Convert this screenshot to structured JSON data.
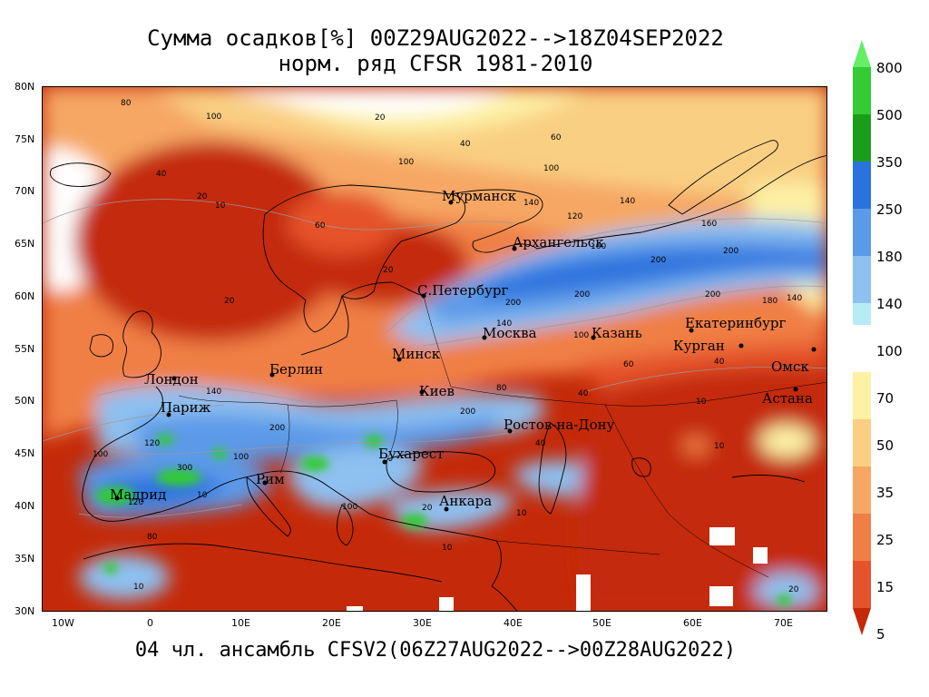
{
  "title": {
    "line1": "Сумма осадков[%] 00Z29AUG2022-->18Z04SEP2022",
    "line2": "норм. ряд CFSR 1981-2010"
  },
  "footer": "04 чл. ансамбль CFSV2(06Z27AUG2022-->00Z28AUG2022)",
  "axes": {
    "lat_labels": [
      "80N",
      "75N",
      "70N",
      "65N",
      "60N",
      "55N",
      "50N",
      "45N",
      "40N",
      "35N",
      "30N"
    ],
    "lon_labels": [
      "10W",
      "0",
      "10E",
      "20E",
      "30E",
      "40E",
      "50E",
      "60E",
      "70E"
    ]
  },
  "cities": [
    {
      "name": "Мурманск"
    },
    {
      "name": "Архангельск"
    },
    {
      "name": "С.Петербург"
    },
    {
      "name": "Москва"
    },
    {
      "name": "Казань"
    },
    {
      "name": "Екатеринбург"
    },
    {
      "name": "Курган"
    },
    {
      "name": "Омск"
    },
    {
      "name": "Астана"
    },
    {
      "name": "Минск"
    },
    {
      "name": "Киев"
    },
    {
      "name": "Берлин"
    },
    {
      "name": "Лондон"
    },
    {
      "name": "Париж"
    },
    {
      "name": "Ростов-на-Дону"
    },
    {
      "name": "Бухарест"
    },
    {
      "name": "Рим"
    },
    {
      "name": "Мадрид"
    },
    {
      "name": "Анкара"
    }
  ],
  "colorbar": {
    "labels": [
      "800",
      "500",
      "350",
      "250",
      "180",
      "140",
      "100",
      "70",
      "50",
      "35",
      "25",
      "15",
      "5"
    ],
    "colors": {
      "800": "#66ee66",
      "500": "#33cc33",
      "350": "#1a9e1a",
      "250": "#2a72de",
      "180": "#5b9ae8",
      "140": "#8ec0f0",
      "100": "#b7ecf6",
      "70": "#fdf1a4",
      "50": "#f9cf83",
      "35": "#f6a763",
      "25": "#f07f45",
      "15": "#e5532c",
      "5": "#c42a09"
    }
  },
  "contour_labels": [
    "10",
    "20",
    "40",
    "60",
    "80",
    "100",
    "120",
    "140",
    "160",
    "180",
    "200",
    "300"
  ]
}
